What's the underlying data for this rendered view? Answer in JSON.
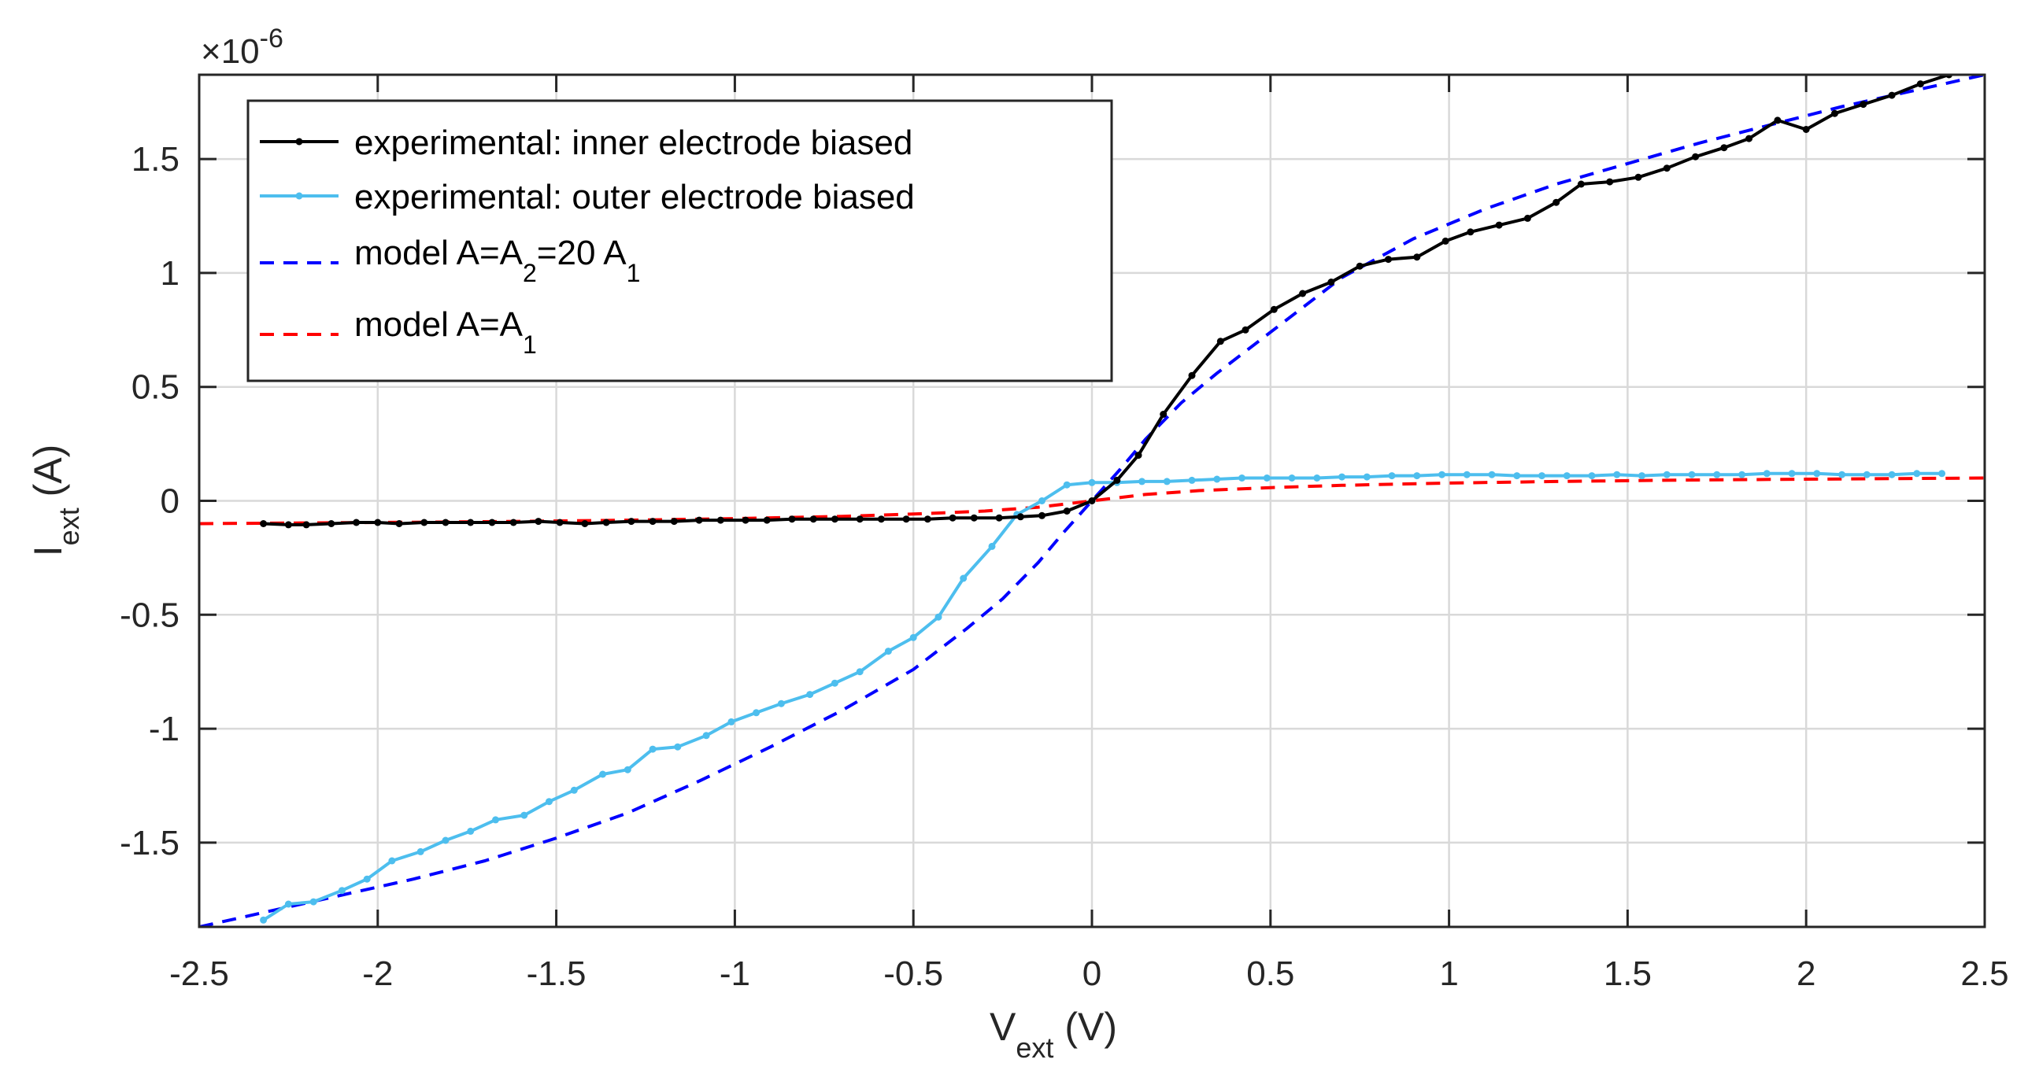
{
  "chart_data": {
    "type": "line",
    "xlabel": {
      "main": "V",
      "sub": "ext",
      "unit": " (V)"
    },
    "ylabel": {
      "main": "I",
      "sub": "ext",
      "unit": " (A)"
    },
    "y_exponent": {
      "prefix": "×10",
      "power": "-6"
    },
    "xlim": [
      -2.5,
      2.5
    ],
    "ylim": [
      -1.87,
      1.87
    ],
    "x_ticks": [
      -2.5,
      -2,
      -1.5,
      -1,
      -0.5,
      0,
      0.5,
      1,
      1.5,
      2,
      2.5
    ],
    "x_tick_labels": [
      "-2.5",
      "-2",
      "-1.5",
      "-1",
      "-0.5",
      "0",
      "0.5",
      "1",
      "1.5",
      "2",
      "2.5"
    ],
    "y_ticks": [
      -1.5,
      -1,
      -0.5,
      0,
      0.5,
      1,
      1.5
    ],
    "y_tick_labels": [
      "-1.5",
      "-1",
      "-0.5",
      "0",
      "0.5",
      "1",
      "1.5"
    ],
    "grid": true,
    "legend_position": "top-left",
    "series": [
      {
        "name": "experimental: inner electrode biased",
        "legend": {
          "text": "experimental: inner electrode biased"
        },
        "color": "#000000",
        "style": "solid-markers",
        "x": [
          -2.32,
          -2.25,
          -2.2,
          -2.13,
          -2.06,
          -2.0,
          -1.94,
          -1.87,
          -1.81,
          -1.74,
          -1.68,
          -1.62,
          -1.55,
          -1.49,
          -1.42,
          -1.36,
          -1.29,
          -1.23,
          -1.17,
          -1.1,
          -1.04,
          -0.97,
          -0.91,
          -0.84,
          -0.78,
          -0.72,
          -0.65,
          -0.59,
          -0.52,
          -0.46,
          -0.39,
          -0.33,
          -0.26,
          -0.2,
          -0.14,
          -0.07,
          0.0,
          0.07,
          0.13,
          0.2,
          0.28,
          0.36,
          0.43,
          0.51,
          0.59,
          0.67,
          0.75,
          0.83,
          0.91,
          0.99,
          1.06,
          1.14,
          1.22,
          1.3,
          1.37,
          1.45,
          1.53,
          1.61,
          1.69,
          1.77,
          1.84,
          1.92,
          2.0,
          2.08,
          2.16,
          2.24,
          2.32,
          2.4
        ],
        "y": [
          -0.1,
          -0.105,
          -0.105,
          -0.1,
          -0.095,
          -0.095,
          -0.1,
          -0.095,
          -0.095,
          -0.095,
          -0.095,
          -0.095,
          -0.09,
          -0.095,
          -0.1,
          -0.095,
          -0.09,
          -0.09,
          -0.09,
          -0.085,
          -0.085,
          -0.085,
          -0.085,
          -0.08,
          -0.08,
          -0.08,
          -0.08,
          -0.08,
          -0.08,
          -0.08,
          -0.075,
          -0.075,
          -0.075,
          -0.07,
          -0.065,
          -0.045,
          0.0,
          0.09,
          0.2,
          0.38,
          0.55,
          0.7,
          0.75,
          0.84,
          0.91,
          0.96,
          1.03,
          1.06,
          1.07,
          1.14,
          1.18,
          1.21,
          1.24,
          1.31,
          1.39,
          1.4,
          1.42,
          1.46,
          1.51,
          1.55,
          1.59,
          1.67,
          1.63,
          1.7,
          1.74,
          1.78,
          1.83,
          1.87
        ]
      },
      {
        "name": "experimental: outer electrode biased",
        "legend": {
          "text": "experimental: outer electrode biased"
        },
        "color": "#4DBEEE",
        "style": "solid-markers",
        "x": [
          -2.32,
          -2.25,
          -2.18,
          -2.1,
          -2.03,
          -1.96,
          -1.88,
          -1.81,
          -1.74,
          -1.67,
          -1.59,
          -1.52,
          -1.45,
          -1.37,
          -1.3,
          -1.23,
          -1.16,
          -1.08,
          -1.01,
          -0.94,
          -0.87,
          -0.79,
          -0.72,
          -0.65,
          -0.57,
          -0.5,
          -0.43,
          -0.36,
          -0.28,
          -0.21,
          -0.14,
          -0.07,
          0.0,
          0.07,
          0.14,
          0.21,
          0.28,
          0.35,
          0.42,
          0.49,
          0.56,
          0.63,
          0.7,
          0.77,
          0.84,
          0.91,
          0.98,
          1.05,
          1.12,
          1.19,
          1.26,
          1.33,
          1.4,
          1.47,
          1.54,
          1.61,
          1.68,
          1.75,
          1.82,
          1.89,
          1.96,
          2.03,
          2.1,
          2.17,
          2.24,
          2.31,
          2.38
        ],
        "y": [
          -1.84,
          -1.77,
          -1.76,
          -1.71,
          -1.66,
          -1.58,
          -1.54,
          -1.49,
          -1.45,
          -1.4,
          -1.38,
          -1.32,
          -1.27,
          -1.2,
          -1.18,
          -1.09,
          -1.08,
          -1.03,
          -0.97,
          -0.93,
          -0.89,
          -0.85,
          -0.8,
          -0.75,
          -0.66,
          -0.6,
          -0.51,
          -0.34,
          -0.2,
          -0.06,
          0.0,
          0.07,
          0.08,
          0.08,
          0.085,
          0.085,
          0.09,
          0.095,
          0.1,
          0.1,
          0.1,
          0.1,
          0.105,
          0.105,
          0.11,
          0.11,
          0.115,
          0.115,
          0.115,
          0.11,
          0.11,
          0.11,
          0.11,
          0.115,
          0.11,
          0.115,
          0.115,
          0.115,
          0.115,
          0.12,
          0.12,
          0.12,
          0.115,
          0.115,
          0.115,
          0.12,
          0.12
        ]
      },
      {
        "name": "model A=A2=20 A1",
        "legend": {
          "p1": "model A=A",
          "s1": "2",
          "p2": "=20 A",
          "s2": "1"
        },
        "color": "#0000FF",
        "style": "dashed",
        "x": [
          -2.5,
          -2.3,
          -2.1,
          -1.9,
          -1.7,
          -1.5,
          -1.3,
          -1.1,
          -0.9,
          -0.7,
          -0.5,
          -0.35,
          -0.25,
          -0.15,
          -0.08,
          0.0,
          0.08,
          0.15,
          0.25,
          0.35,
          0.5,
          0.7,
          0.9,
          1.1,
          1.3,
          1.5,
          1.7,
          1.9,
          2.1,
          2.3,
          2.5
        ],
        "y": [
          -1.87,
          -1.8,
          -1.73,
          -1.66,
          -1.58,
          -1.48,
          -1.37,
          -1.23,
          -1.08,
          -0.92,
          -0.74,
          -0.56,
          -0.43,
          -0.27,
          -0.14,
          0.0,
          0.14,
          0.27,
          0.43,
          0.56,
          0.74,
          0.98,
          1.15,
          1.28,
          1.39,
          1.48,
          1.57,
          1.65,
          1.73,
          1.8,
          1.87
        ]
      },
      {
        "name": "model A=A1",
        "legend": {
          "p1": "model  A=A",
          "s1": "1"
        },
        "color": "#FF0000",
        "style": "dashed",
        "x": [
          -2.5,
          -2.2,
          -1.9,
          -1.6,
          -1.3,
          -1.0,
          -0.7,
          -0.5,
          -0.3,
          -0.15,
          0.0,
          0.15,
          0.3,
          0.5,
          0.7,
          1.0,
          1.3,
          1.6,
          1.9,
          2.2,
          2.5
        ],
        "y": [
          -0.1,
          -0.097,
          -0.094,
          -0.09,
          -0.085,
          -0.078,
          -0.068,
          -0.058,
          -0.045,
          -0.028,
          0.0,
          0.028,
          0.045,
          0.058,
          0.068,
          0.078,
          0.085,
          0.09,
          0.094,
          0.097,
          0.1
        ]
      }
    ]
  }
}
